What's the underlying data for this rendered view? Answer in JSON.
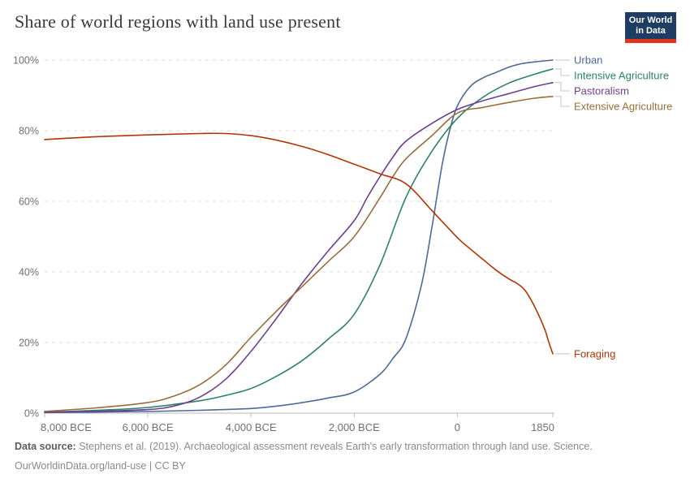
{
  "header": {
    "title": "Share of world regions with land use present",
    "logo": {
      "line1": "Our World",
      "line2": "in Data",
      "bg_color": "#1d3d63",
      "stripe_color": "#e0341f"
    }
  },
  "footer": {
    "source_label": "Data source:",
    "source_text": "Stephens et al. (2019). Archaeological assessment reveals Earth's early transformation through land use. Science.",
    "citation": "OurWorldinData.org/land-use | CC BY"
  },
  "chart_data": {
    "type": "line",
    "title": "Share of world regions with land use present",
    "xlabel": "",
    "ylabel": "",
    "grid": "dashed-horizontal",
    "legend_position": "right-end-labels",
    "x_axis": {
      "min": -8000,
      "max": 1850,
      "ticks": [
        {
          "value": -8000,
          "label": "8,000 BCE"
        },
        {
          "value": -6000,
          "label": "6,000 BCE"
        },
        {
          "value": -4000,
          "label": "4,000 BCE"
        },
        {
          "value": -2000,
          "label": "2,000 BCE"
        },
        {
          "value": 0,
          "label": "0"
        },
        {
          "value": 1850,
          "label": "1850"
        }
      ]
    },
    "y_axis": {
      "min": 0,
      "max": 100,
      "unit": "%",
      "ticks": [
        {
          "value": 0,
          "label": "0%"
        },
        {
          "value": 20,
          "label": "20%"
        },
        {
          "value": 40,
          "label": "40%"
        },
        {
          "value": 60,
          "label": "60%"
        },
        {
          "value": 80,
          "label": "80%"
        },
        {
          "value": 100,
          "label": "100%"
        }
      ]
    },
    "series": [
      {
        "name": "Urban",
        "color": "#4C6A9C",
        "points": [
          [
            -8000,
            0.2
          ],
          [
            -7000,
            0.3
          ],
          [
            -6000,
            0.45
          ],
          [
            -5000,
            0.8
          ],
          [
            -4000,
            1.3
          ],
          [
            -3500,
            2
          ],
          [
            -3000,
            3
          ],
          [
            -2500,
            4.3
          ],
          [
            -2000,
            6
          ],
          [
            -1500,
            11
          ],
          [
            -1250,
            15.5
          ],
          [
            -1000,
            21
          ],
          [
            -700,
            36
          ],
          [
            -500,
            52
          ],
          [
            -300,
            70
          ],
          [
            -150,
            80
          ],
          [
            0,
            87
          ],
          [
            250,
            92.5
          ],
          [
            500,
            95
          ],
          [
            750,
            96.5
          ],
          [
            1000,
            98
          ],
          [
            1250,
            99
          ],
          [
            1500,
            99.5
          ],
          [
            1850,
            100
          ]
        ]
      },
      {
        "name": "Intensive Agriculture",
        "color": "#2C8465",
        "points": [
          [
            -8000,
            0.3
          ],
          [
            -7000,
            0.8
          ],
          [
            -6000,
            1.6
          ],
          [
            -5000,
            3.5
          ],
          [
            -4500,
            5
          ],
          [
            -4000,
            7
          ],
          [
            -3500,
            10.5
          ],
          [
            -3000,
            15
          ],
          [
            -2500,
            21
          ],
          [
            -2000,
            28
          ],
          [
            -1500,
            42
          ],
          [
            -1000,
            61
          ],
          [
            -500,
            74
          ],
          [
            0,
            83.5
          ],
          [
            500,
            89.5
          ],
          [
            1000,
            93.5
          ],
          [
            1500,
            96
          ],
          [
            1850,
            97.5
          ]
        ]
      },
      {
        "name": "Pastoralism",
        "color": "#6D3E91",
        "points": [
          [
            -8000,
            0.2
          ],
          [
            -7000,
            0.5
          ],
          [
            -6000,
            1
          ],
          [
            -5500,
            2
          ],
          [
            -5000,
            4.5
          ],
          [
            -4500,
            9.5
          ],
          [
            -4000,
            17.5
          ],
          [
            -3500,
            27
          ],
          [
            -3000,
            37
          ],
          [
            -2500,
            46
          ],
          [
            -2000,
            54.5
          ],
          [
            -1750,
            61
          ],
          [
            -1500,
            67
          ],
          [
            -1250,
            72.5
          ],
          [
            -1000,
            77
          ],
          [
            -500,
            82
          ],
          [
            0,
            86
          ],
          [
            500,
            88.5
          ],
          [
            1000,
            90.5
          ],
          [
            1500,
            92.5
          ],
          [
            1850,
            93.6
          ]
        ]
      },
      {
        "name": "Extensive Agriculture",
        "color": "#996D39",
        "points": [
          [
            -8000,
            0.5
          ],
          [
            -7000,
            1.5
          ],
          [
            -6000,
            3
          ],
          [
            -5500,
            4.8
          ],
          [
            -5000,
            8
          ],
          [
            -4500,
            13.5
          ],
          [
            -4000,
            21.5
          ],
          [
            -3500,
            29
          ],
          [
            -3000,
            36
          ],
          [
            -2500,
            43
          ],
          [
            -2000,
            50
          ],
          [
            -1500,
            61
          ],
          [
            -1250,
            67
          ],
          [
            -1000,
            72
          ],
          [
            -500,
            78.5
          ],
          [
            0,
            85
          ],
          [
            500,
            86.6
          ],
          [
            1000,
            88
          ],
          [
            1500,
            89.2
          ],
          [
            1850,
            89.7
          ]
        ]
      },
      {
        "name": "Foraging",
        "color": "#B13507",
        "points": [
          [
            -8000,
            77.5
          ],
          [
            -7000,
            78.3
          ],
          [
            -6000,
            78.8
          ],
          [
            -5000,
            79.2
          ],
          [
            -4500,
            79.2
          ],
          [
            -4000,
            78.6
          ],
          [
            -3500,
            77.3
          ],
          [
            -3000,
            75.5
          ],
          [
            -2500,
            73.2
          ],
          [
            -2000,
            70.5
          ],
          [
            -1500,
            67.8
          ],
          [
            -1000,
            65
          ],
          [
            -500,
            57.5
          ],
          [
            0,
            49.7
          ],
          [
            250,
            46.5
          ],
          [
            500,
            43.5
          ],
          [
            750,
            40.5
          ],
          [
            1000,
            38
          ],
          [
            1150,
            36.8
          ],
          [
            1300,
            35
          ],
          [
            1450,
            31.5
          ],
          [
            1600,
            27
          ],
          [
            1700,
            23.5
          ],
          [
            1775,
            20
          ],
          [
            1850,
            16.8
          ]
        ]
      }
    ]
  }
}
